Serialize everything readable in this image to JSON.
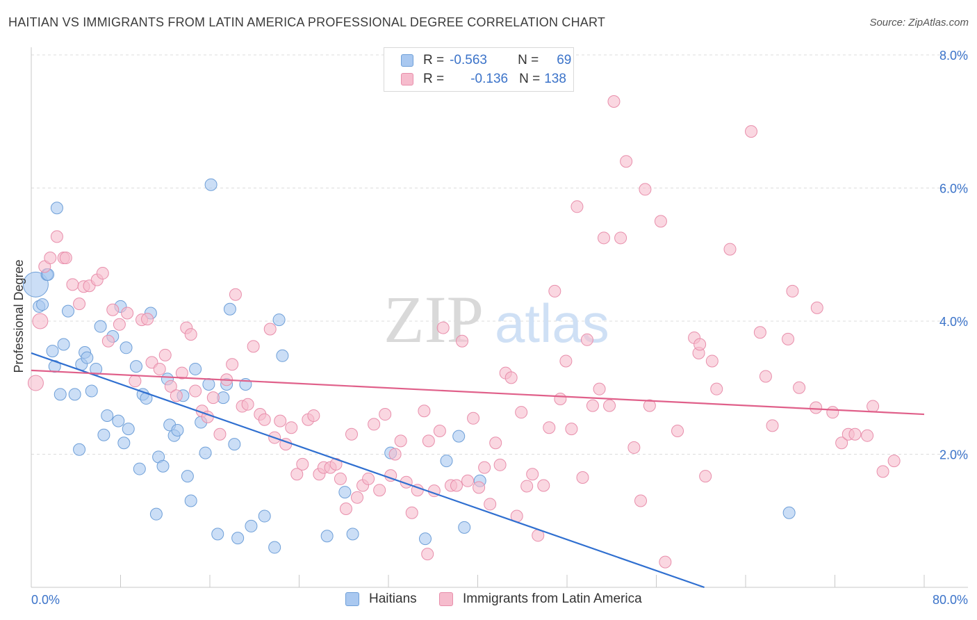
{
  "header": {
    "title": "HAITIAN VS IMMIGRANTS FROM LATIN AMERICA PROFESSIONAL DEGREE CORRELATION CHART",
    "source": "Source: ZipAtlas.com"
  },
  "watermark": {
    "zip": "ZIP",
    "atlas": "atlas"
  },
  "legend_top": {
    "rows": [
      {
        "r_label": "R =",
        "r_value": "-0.563",
        "n_label": "N =",
        "n_value": "69"
      },
      {
        "r_label": "R =",
        "r_value": "-0.136",
        "n_label": "N =",
        "n_value": "138"
      }
    ]
  },
  "legend_bottom": {
    "items": [
      "Haitians",
      "Immigrants from Latin America"
    ]
  },
  "colors": {
    "blue_fill": "#a9c8f0",
    "blue_stroke": "#6e9fd8",
    "blue_line": "#2f6fd0",
    "pink_fill": "#f6bccd",
    "pink_stroke": "#e88eab",
    "pink_line": "#e0608a",
    "tick_text": "#3b73c9",
    "grid": "#dcdcdc"
  },
  "chart_data": {
    "type": "scatter",
    "title": "HAITIAN VS IMMIGRANTS FROM LATIN AMERICA PROFESSIONAL DEGREE CORRELATION CHART",
    "xlabel": "",
    "ylabel": "Professional Degree",
    "xlim": [
      0,
      80
    ],
    "ylim": [
      0,
      8.0
    ],
    "x_tick_labels": [
      "0.0%",
      "80.0%"
    ],
    "y_ticks": [
      2.0,
      4.0,
      6.0,
      8.0
    ],
    "y_tick_labels": [
      "2.0%",
      "4.0%",
      "6.0%",
      "8.0%"
    ],
    "grid": true,
    "legend_position": "top-center",
    "series": [
      {
        "name": "Haitians",
        "r": -0.563,
        "n": 69,
        "trend": {
          "x": [
            0,
            60.3
          ],
          "y": [
            3.52,
            0.0
          ]
        },
        "points": [
          [
            0.4,
            4.55
          ],
          [
            0.7,
            4.22
          ],
          [
            1.0,
            4.25
          ],
          [
            1.4,
            4.7
          ],
          [
            1.5,
            4.7
          ],
          [
            1.9,
            3.55
          ],
          [
            2.1,
            3.32
          ],
          [
            2.6,
            2.9
          ],
          [
            2.9,
            3.65
          ],
          [
            3.3,
            4.15
          ],
          [
            3.9,
            2.9
          ],
          [
            4.3,
            2.07
          ],
          [
            4.5,
            3.35
          ],
          [
            4.8,
            3.53
          ],
          [
            5.0,
            3.45
          ],
          [
            5.4,
            2.95
          ],
          [
            5.8,
            3.28
          ],
          [
            6.2,
            3.92
          ],
          [
            6.5,
            2.29
          ],
          [
            6.8,
            2.58
          ],
          [
            7.3,
            3.77
          ],
          [
            7.8,
            2.5
          ],
          [
            8.0,
            4.22
          ],
          [
            8.3,
            2.17
          ],
          [
            8.5,
            3.6
          ],
          [
            8.7,
            2.38
          ],
          [
            9.4,
            3.32
          ],
          [
            9.7,
            1.78
          ],
          [
            10.0,
            2.9
          ],
          [
            10.3,
            2.84
          ],
          [
            10.7,
            4.12
          ],
          [
            11.2,
            1.1
          ],
          [
            11.4,
            1.96
          ],
          [
            11.8,
            1.82
          ],
          [
            12.2,
            3.13
          ],
          [
            12.4,
            2.44
          ],
          [
            12.8,
            2.28
          ],
          [
            13.1,
            2.36
          ],
          [
            13.6,
            2.88
          ],
          [
            14.0,
            1.67
          ],
          [
            14.3,
            1.3
          ],
          [
            14.7,
            3.28
          ],
          [
            15.2,
            2.48
          ],
          [
            15.6,
            2.02
          ],
          [
            15.9,
            3.05
          ],
          [
            16.1,
            6.05
          ],
          [
            16.7,
            0.8
          ],
          [
            17.2,
            2.85
          ],
          [
            17.5,
            3.05
          ],
          [
            17.8,
            4.18
          ],
          [
            18.2,
            2.15
          ],
          [
            18.5,
            0.74
          ],
          [
            19.2,
            3.05
          ],
          [
            19.7,
            0.92
          ],
          [
            20.9,
            1.07
          ],
          [
            21.8,
            0.6
          ],
          [
            22.2,
            4.02
          ],
          [
            22.5,
            3.48
          ],
          [
            26.5,
            0.77
          ],
          [
            28.1,
            1.43
          ],
          [
            28.8,
            0.8
          ],
          [
            32.2,
            2.02
          ],
          [
            35.3,
            0.73
          ],
          [
            37.2,
            1.9
          ],
          [
            38.3,
            2.27
          ],
          [
            38.8,
            0.9
          ],
          [
            40.2,
            1.6
          ],
          [
            67.9,
            1.12
          ],
          [
            2.3,
            5.7
          ]
        ]
      },
      {
        "name": "Immigrants from Latin America",
        "r": -0.136,
        "n": 138,
        "trend": {
          "x": [
            0,
            80
          ],
          "y": [
            3.26,
            2.6
          ]
        },
        "points": [
          [
            0.4,
            3.07
          ],
          [
            0.8,
            4.0
          ],
          [
            1.2,
            4.82
          ],
          [
            1.7,
            4.95
          ],
          [
            2.3,
            5.27
          ],
          [
            2.9,
            4.95
          ],
          [
            3.1,
            4.95
          ],
          [
            3.7,
            4.55
          ],
          [
            4.3,
            4.26
          ],
          [
            4.7,
            4.52
          ],
          [
            5.2,
            4.53
          ],
          [
            5.9,
            4.62
          ],
          [
            6.4,
            4.72
          ],
          [
            6.9,
            3.7
          ],
          [
            7.3,
            4.17
          ],
          [
            7.9,
            3.95
          ],
          [
            8.6,
            4.12
          ],
          [
            9.3,
            3.1
          ],
          [
            9.9,
            4.02
          ],
          [
            10.4,
            4.03
          ],
          [
            10.8,
            3.38
          ],
          [
            11.5,
            3.28
          ],
          [
            12.0,
            3.49
          ],
          [
            12.5,
            3.02
          ],
          [
            13.0,
            2.88
          ],
          [
            13.5,
            3.22
          ],
          [
            13.9,
            3.9
          ],
          [
            14.3,
            3.8
          ],
          [
            14.7,
            2.95
          ],
          [
            15.3,
            2.65
          ],
          [
            15.8,
            2.56
          ],
          [
            16.3,
            2.85
          ],
          [
            16.9,
            2.3
          ],
          [
            17.5,
            3.12
          ],
          [
            18.0,
            3.35
          ],
          [
            18.3,
            4.4
          ],
          [
            18.9,
            2.72
          ],
          [
            19.4,
            2.75
          ],
          [
            19.9,
            3.62
          ],
          [
            20.5,
            2.6
          ],
          [
            20.9,
            2.52
          ],
          [
            21.4,
            3.88
          ],
          [
            21.8,
            2.25
          ],
          [
            22.3,
            2.5
          ],
          [
            22.8,
            2.15
          ],
          [
            23.3,
            2.4
          ],
          [
            23.8,
            1.7
          ],
          [
            24.3,
            1.85
          ],
          [
            24.8,
            2.52
          ],
          [
            25.3,
            2.58
          ],
          [
            25.8,
            1.7
          ],
          [
            26.2,
            1.8
          ],
          [
            26.8,
            1.8
          ],
          [
            27.3,
            1.85
          ],
          [
            27.7,
            1.63
          ],
          [
            28.2,
            1.18
          ],
          [
            28.7,
            2.3
          ],
          [
            29.2,
            1.35
          ],
          [
            29.7,
            1.53
          ],
          [
            30.2,
            1.63
          ],
          [
            30.7,
            2.45
          ],
          [
            31.2,
            1.46
          ],
          [
            31.7,
            2.6
          ],
          [
            32.2,
            1.68
          ],
          [
            32.6,
            2.0
          ],
          [
            33.1,
            2.2
          ],
          [
            33.6,
            1.58
          ],
          [
            34.1,
            1.12
          ],
          [
            34.6,
            1.46
          ],
          [
            35.2,
            2.65
          ],
          [
            35.6,
            2.2
          ],
          [
            36.1,
            1.45
          ],
          [
            36.6,
            2.35
          ],
          [
            36.9,
            3.9
          ],
          [
            37.6,
            1.53
          ],
          [
            38.1,
            1.53
          ],
          [
            38.6,
            3.7
          ],
          [
            39.1,
            1.6
          ],
          [
            39.6,
            2.54
          ],
          [
            40.1,
            1.5
          ],
          [
            40.6,
            1.8
          ],
          [
            41.1,
            1.25
          ],
          [
            41.6,
            2.17
          ],
          [
            42.0,
            1.84
          ],
          [
            42.5,
            3.22
          ],
          [
            43.0,
            3.15
          ],
          [
            43.5,
            1.07
          ],
          [
            43.9,
            2.63
          ],
          [
            44.4,
            1.52
          ],
          [
            44.9,
            1.7
          ],
          [
            45.4,
            0.78
          ],
          [
            45.9,
            1.53
          ],
          [
            46.4,
            2.4
          ],
          [
            46.9,
            4.45
          ],
          [
            47.4,
            2.83
          ],
          [
            47.9,
            3.4
          ],
          [
            48.4,
            2.38
          ],
          [
            48.9,
            5.72
          ],
          [
            49.4,
            1.65
          ],
          [
            49.8,
            3.72
          ],
          [
            50.3,
            2.73
          ],
          [
            50.9,
            2.98
          ],
          [
            51.3,
            5.25
          ],
          [
            51.8,
            2.73
          ],
          [
            52.2,
            7.3
          ],
          [
            52.8,
            5.25
          ],
          [
            53.3,
            6.4
          ],
          [
            54.0,
            2.1
          ],
          [
            54.6,
            1.3
          ],
          [
            55.0,
            5.98
          ],
          [
            55.4,
            2.73
          ],
          [
            56.4,
            5.5
          ],
          [
            57.9,
            2.35
          ],
          [
            59.4,
            3.75
          ],
          [
            59.8,
            3.52
          ],
          [
            59.9,
            3.65
          ],
          [
            60.4,
            1.67
          ],
          [
            61.0,
            3.4
          ],
          [
            61.4,
            2.98
          ],
          [
            62.6,
            5.08
          ],
          [
            64.5,
            6.85
          ],
          [
            65.3,
            3.83
          ],
          [
            65.8,
            3.17
          ],
          [
            66.4,
            2.43
          ],
          [
            67.8,
            3.73
          ],
          [
            68.2,
            4.45
          ],
          [
            68.8,
            3.0
          ],
          [
            70.4,
            4.2
          ],
          [
            70.3,
            2.7
          ],
          [
            71.8,
            2.63
          ],
          [
            72.6,
            2.17
          ],
          [
            73.2,
            2.3
          ],
          [
            73.8,
            2.3
          ],
          [
            74.9,
            2.28
          ],
          [
            75.4,
            2.72
          ],
          [
            76.3,
            1.74
          ],
          [
            77.3,
            1.9
          ],
          [
            56.8,
            0.38
          ],
          [
            35.5,
            0.5
          ]
        ]
      }
    ]
  }
}
